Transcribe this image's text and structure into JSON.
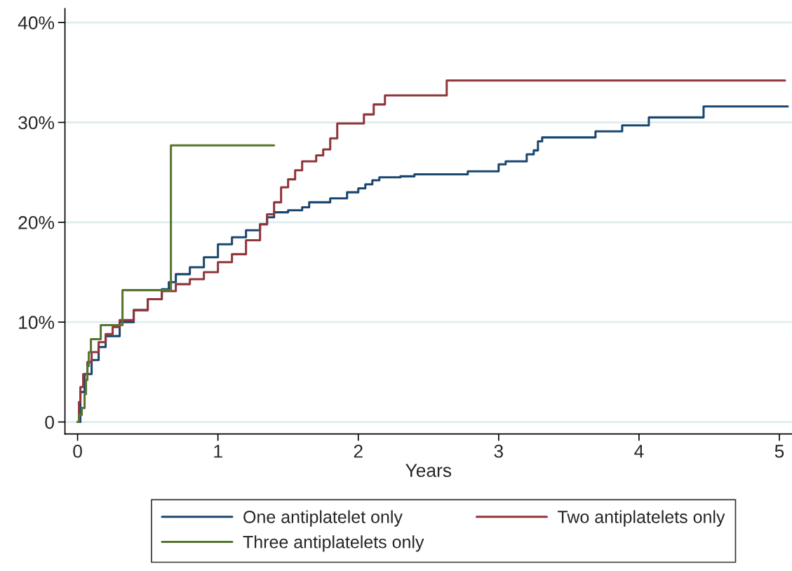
{
  "chart_data": {
    "type": "step",
    "xlabel": "Years",
    "xlim": [
      -0.09,
      5.09
    ],
    "ylim": [
      -1.2,
      41.4
    ],
    "xticks": [
      0,
      1,
      2,
      3,
      4,
      5
    ],
    "yticks": [
      0,
      {
        "value": 10,
        "label": "10%"
      },
      {
        "value": 20,
        "label": "20%"
      },
      {
        "value": 30,
        "label": "30%"
      },
      {
        "value": 40,
        "label": "40%"
      }
    ],
    "grid": "y",
    "legend": "bottom",
    "line_style": "solid",
    "marker": "none",
    "series": [
      {
        "name": "One antiplatelet only",
        "color": "#1a476f",
        "x": [
          0,
          0.02,
          0.05,
          0.1,
          0.15,
          0.2,
          0.3,
          0.4,
          0.5,
          0.6,
          0.65,
          0.7,
          0.8,
          0.9,
          1.0,
          1.1,
          1.2,
          1.3,
          1.35,
          1.4,
          1.5,
          1.6,
          1.65,
          1.8,
          1.92,
          2.0,
          2.05,
          2.1,
          2.15,
          2.3,
          2.4,
          2.78,
          3.0,
          3.05,
          3.2,
          3.25,
          3.28,
          3.31,
          3.69,
          3.88,
          4.07,
          4.46,
          5.06
        ],
        "values": [
          0,
          3,
          4.8,
          6.2,
          7.5,
          8.6,
          10,
          11.2,
          12.3,
          13.3,
          14,
          14.8,
          15.5,
          16.5,
          17.8,
          18.5,
          19.2,
          19.8,
          20.5,
          21,
          21.2,
          21.5,
          22,
          22.4,
          23,
          23.4,
          23.8,
          24.2,
          24.5,
          24.6,
          24.8,
          25.1,
          25.8,
          26.1,
          26.8,
          27.2,
          28.1,
          28.5,
          29.1,
          29.7,
          30.5,
          31.6,
          31.6
        ]
      },
      {
        "name": "Two antiplatelets only",
        "color": "#90353b",
        "x": [
          0,
          0.01,
          0.02,
          0.04,
          0.07,
          0.1,
          0.15,
          0.2,
          0.25,
          0.3,
          0.4,
          0.5,
          0.6,
          0.7,
          0.8,
          0.9,
          1.0,
          1.1,
          1.2,
          1.3,
          1.35,
          1.4,
          1.45,
          1.5,
          1.55,
          1.6,
          1.7,
          1.75,
          1.8,
          1.85,
          2.04,
          2.11,
          2.19,
          2.63,
          5.04
        ],
        "values": [
          0,
          2,
          3.5,
          4.8,
          6,
          7,
          8,
          8.8,
          9.5,
          10.2,
          11.2,
          12.3,
          13.1,
          13.8,
          14.3,
          15,
          16,
          16.8,
          18.2,
          19.8,
          20.8,
          22,
          23.5,
          24.3,
          25.2,
          26.1,
          26.7,
          27.3,
          28.4,
          29.9,
          30.8,
          31.8,
          32.7,
          34.2,
          34.2
        ]
      },
      {
        "name": "Three antiplatelets only",
        "color": "#55752f",
        "x": [
          0,
          0.01,
          0.03,
          0.05,
          0.06,
          0.07,
          0.08,
          0.095,
          0.165,
          0.32,
          0.665,
          1.4
        ],
        "values": [
          0,
          0.7,
          1.4,
          2.8,
          4.2,
          5.6,
          7.0,
          8.3,
          9.7,
          13.2,
          27.7,
          27.7
        ]
      }
    ]
  }
}
